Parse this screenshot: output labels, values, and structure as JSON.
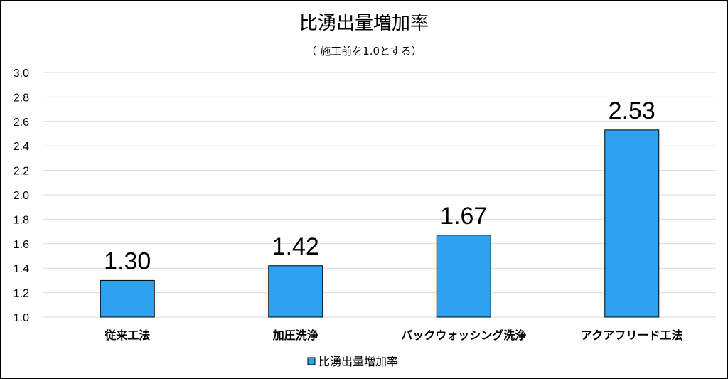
{
  "chart_data": {
    "type": "bar",
    "title": "比湧出量増加率",
    "subtitle": "（ 施工前を1.0とする）",
    "categories": [
      "従来工法",
      "加圧洗浄",
      "バックウォッシング洗浄",
      "アクアフリード工法"
    ],
    "series": [
      {
        "name": "比湧出量増加率",
        "values": [
          1.3,
          1.42,
          1.67,
          2.53
        ],
        "color": "#2ea2ef"
      }
    ],
    "data_labels": [
      "1.30",
      "1.42",
      "1.67",
      "2.53"
    ],
    "y_ticks": [
      "1.0",
      "1.2",
      "1.4",
      "1.6",
      "1.8",
      "2.0",
      "2.2",
      "2.4",
      "2.6",
      "2.8",
      "3.0"
    ],
    "ylim": [
      1.0,
      3.0
    ],
    "grid": true,
    "legend": "bottom"
  }
}
